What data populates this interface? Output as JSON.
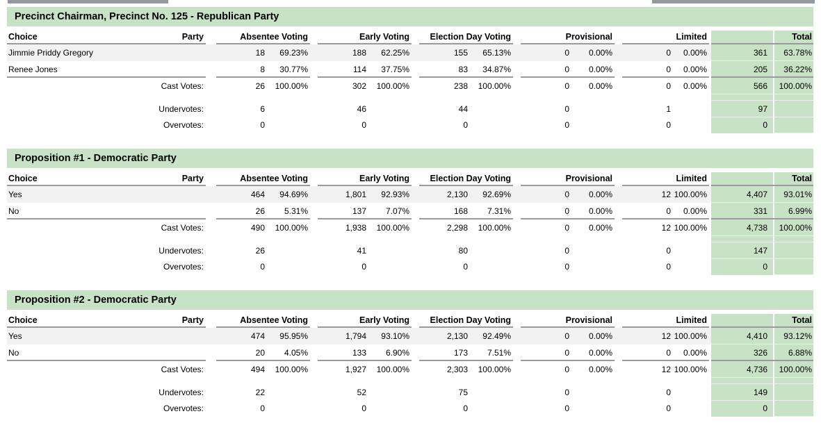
{
  "colors": {
    "section_green": "#c8e2c5",
    "row_stripe": "#f2f2f2",
    "rule_gray": "#9a9a9a",
    "top_bar_gray": "#95999e"
  },
  "headers": {
    "choice": "Choice",
    "party": "Party",
    "groups": [
      "Absentee Voting",
      "Early Voting",
      "Election Day Voting",
      "Provisional",
      "Limited",
      "Total"
    ]
  },
  "tables": [
    {
      "title": "Precinct Chairman, Precinct No. 125 - Republican Party",
      "rows": [
        {
          "choice": "Jimmie Priddy Gregory",
          "party": "",
          "values": [
            [
              "18",
              "69.23%"
            ],
            [
              "188",
              "62.25%"
            ],
            [
              "155",
              "65.13%"
            ],
            [
              "0",
              "0.00%"
            ],
            [
              "0",
              "0.00%"
            ],
            [
              "361",
              "63.78%"
            ]
          ]
        },
        {
          "choice": "Renee Jones",
          "party": "",
          "values": [
            [
              "8",
              "30.77%"
            ],
            [
              "114",
              "37.75%"
            ],
            [
              "83",
              "34.87%"
            ],
            [
              "0",
              "0.00%"
            ],
            [
              "0",
              "0.00%"
            ],
            [
              "205",
              "36.22%"
            ]
          ]
        }
      ],
      "cast_votes": {
        "label": "Cast Votes:",
        "values": [
          [
            "26",
            "100.00%"
          ],
          [
            "302",
            "100.00%"
          ],
          [
            "238",
            "100.00%"
          ],
          [
            "0",
            "0.00%"
          ],
          [
            "0",
            "0.00%"
          ],
          [
            "566",
            "100.00%"
          ]
        ]
      },
      "undervotes": {
        "label": "Undervotes:",
        "values": [
          "6",
          "46",
          "44",
          "0",
          "1",
          "97"
        ]
      },
      "overvotes": {
        "label": "Overvotes:",
        "values": [
          "0",
          "0",
          "0",
          "0",
          "0",
          "0"
        ]
      }
    },
    {
      "title": "Proposition #1 - Democratic Party",
      "rows": [
        {
          "choice": "Yes",
          "party": "",
          "values": [
            [
              "464",
              "94.69%"
            ],
            [
              "1,801",
              "92.93%"
            ],
            [
              "2,130",
              "92.69%"
            ],
            [
              "0",
              "0.00%"
            ],
            [
              "12",
              "100.00%"
            ],
            [
              "4,407",
              "93.01%"
            ]
          ]
        },
        {
          "choice": "No",
          "party": "",
          "values": [
            [
              "26",
              "5.31%"
            ],
            [
              "137",
              "7.07%"
            ],
            [
              "168",
              "7.31%"
            ],
            [
              "0",
              "0.00%"
            ],
            [
              "0",
              "0.00%"
            ],
            [
              "331",
              "6.99%"
            ]
          ]
        }
      ],
      "cast_votes": {
        "label": "Cast Votes:",
        "values": [
          [
            "490",
            "100.00%"
          ],
          [
            "1,938",
            "100.00%"
          ],
          [
            "2,298",
            "100.00%"
          ],
          [
            "0",
            "0.00%"
          ],
          [
            "12",
            "100.00%"
          ],
          [
            "4,738",
            "100.00%"
          ]
        ]
      },
      "undervotes": {
        "label": "Undervotes:",
        "values": [
          "26",
          "41",
          "80",
          "0",
          "0",
          "147"
        ]
      },
      "overvotes": {
        "label": "Overvotes:",
        "values": [
          "0",
          "0",
          "0",
          "0",
          "0",
          "0"
        ]
      }
    },
    {
      "title": "Proposition #2 - Democratic Party",
      "rows": [
        {
          "choice": "Yes",
          "party": "",
          "values": [
            [
              "474",
              "95.95%"
            ],
            [
              "1,794",
              "93.10%"
            ],
            [
              "2,130",
              "92.49%"
            ],
            [
              "0",
              "0.00%"
            ],
            [
              "12",
              "100.00%"
            ],
            [
              "4,410",
              "93.12%"
            ]
          ]
        },
        {
          "choice": "No",
          "party": "",
          "values": [
            [
              "20",
              "4.05%"
            ],
            [
              "133",
              "6.90%"
            ],
            [
              "173",
              "7.51%"
            ],
            [
              "0",
              "0.00%"
            ],
            [
              "0",
              "0.00%"
            ],
            [
              "326",
              "6.88%"
            ]
          ]
        }
      ],
      "cast_votes": {
        "label": "Cast Votes:",
        "values": [
          [
            "494",
            "100.00%"
          ],
          [
            "1,927",
            "100.00%"
          ],
          [
            "2,303",
            "100.00%"
          ],
          [
            "0",
            "0.00%"
          ],
          [
            "12",
            "100.00%"
          ],
          [
            "4,736",
            "100.00%"
          ]
        ]
      },
      "undervotes": {
        "label": "Undervotes:",
        "values": [
          "22",
          "52",
          "75",
          "0",
          "0",
          "149"
        ]
      },
      "overvotes": {
        "label": "Overvotes:",
        "values": [
          "0",
          "0",
          "0",
          "0",
          "0",
          "0"
        ]
      }
    }
  ]
}
